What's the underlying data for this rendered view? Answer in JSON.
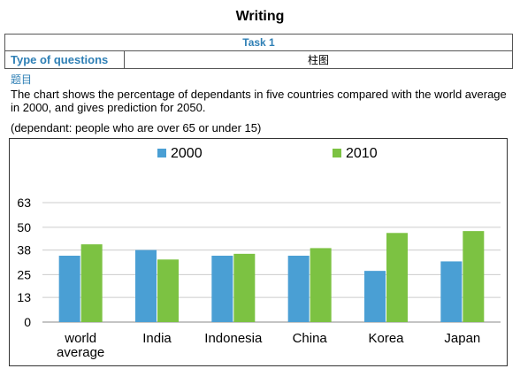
{
  "page": {
    "title": "Writing"
  },
  "task": {
    "header": "Task 1",
    "type_label": "Type of questions",
    "type_value": "柱图"
  },
  "question": {
    "label": "题目",
    "text": "The chart shows the percentage of dependants in five countries compared with the world average in 2000, and gives prediction for 2050.",
    "note": "(dependant: people who are over 65 or under 15)"
  },
  "colors": {
    "series_2000": "#4a9fd4",
    "series_2010": "#7cc242",
    "grid": "#cccccc"
  },
  "chart_data": {
    "type": "bar",
    "title": "",
    "xlabel": "",
    "ylabel": "",
    "ylim": [
      0,
      63
    ],
    "yticks": [
      0,
      13,
      25,
      38,
      50,
      63
    ],
    "grid": true,
    "legend_position": "top",
    "categories": [
      "world average",
      "India",
      "Indonesia",
      "China",
      "Korea",
      "Japan"
    ],
    "category_lines": [
      [
        "world",
        "average"
      ],
      [
        "India"
      ],
      [
        "Indonesia"
      ],
      [
        "China"
      ],
      [
        "Korea"
      ],
      [
        "Japan"
      ]
    ],
    "series": [
      {
        "name": "2000",
        "values": [
          35,
          38,
          35,
          35,
          27,
          32
        ]
      },
      {
        "name": "2010",
        "values": [
          41,
          33,
          36,
          39,
          47,
          48
        ]
      }
    ]
  }
}
